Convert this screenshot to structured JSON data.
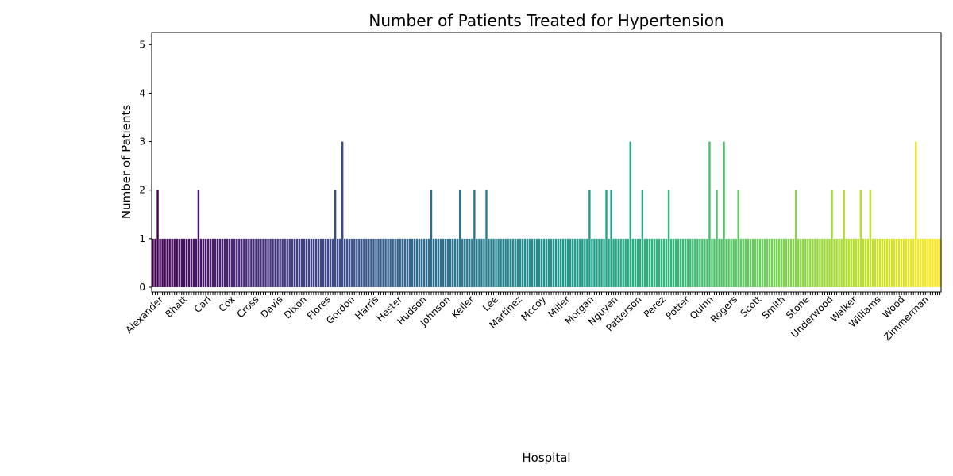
{
  "chart_data": {
    "type": "bar",
    "title": "Number of Patients Treated for Hypertension",
    "xlabel": "Hospital",
    "ylabel": "Number of Patients",
    "ylim": [
      0,
      5.25
    ],
    "yticks": [
      0,
      1,
      2,
      3,
      4,
      5
    ],
    "grid": false,
    "legend": "none",
    "palette": "viridis",
    "categories_visible": [
      "Alexander",
      "Bhatt",
      "Carl",
      "Cox",
      "Cross",
      "Davis",
      "Dixon",
      "Flores",
      "Gordon",
      "Harris",
      "Hester",
      "Hudson",
      "Johnson",
      "Keller",
      "Lee",
      "Martinez",
      "Mccoy",
      "Miller",
      "Morgan",
      "Nguyen",
      "Patterson",
      "Perez",
      "Potter",
      "Quinn",
      "Rogers",
      "Scott",
      "Smith",
      "Stone",
      "Underwood",
      "Walker",
      "Williams",
      "Wood",
      "Zimmerman"
    ],
    "n_bars": 330,
    "values": [
      1,
      1,
      2,
      1,
      1,
      1,
      1,
      1,
      1,
      1,
      1,
      1,
      1,
      1,
      1,
      1,
      1,
      1,
      1,
      2,
      1,
      1,
      1,
      1,
      1,
      1,
      1,
      1,
      1,
      1,
      1,
      1,
      1,
      1,
      1,
      1,
      1,
      1,
      1,
      1,
      1,
      1,
      1,
      1,
      1,
      1,
      1,
      1,
      1,
      1,
      1,
      1,
      1,
      1,
      1,
      1,
      1,
      1,
      1,
      1,
      1,
      1,
      1,
      1,
      1,
      1,
      1,
      1,
      1,
      1,
      1,
      1,
      1,
      1,
      1,
      1,
      2,
      1,
      1,
      3,
      1,
      1,
      1,
      1,
      1,
      1,
      1,
      1,
      1,
      1,
      1,
      1,
      1,
      1,
      1,
      1,
      1,
      1,
      1,
      1,
      1,
      1,
      1,
      1,
      1,
      1,
      1,
      1,
      1,
      1,
      1,
      1,
      1,
      1,
      1,
      1,
      2,
      1,
      1,
      1,
      1,
      1,
      1,
      1,
      1,
      1,
      1,
      1,
      2,
      1,
      1,
      1,
      1,
      1,
      2,
      1,
      1,
      1,
      1,
      2,
      1,
      1,
      1,
      1,
      1,
      1,
      1,
      1,
      1,
      1,
      1,
      1,
      1,
      1,
      1,
      1,
      1,
      1,
      1,
      1,
      1,
      1,
      1,
      1,
      1,
      1,
      1,
      1,
      1,
      1,
      1,
      1,
      1,
      1,
      1,
      1,
      1,
      1,
      1,
      1,
      1,
      1,
      2,
      1,
      1,
      1,
      1,
      1,
      1,
      2,
      1,
      2,
      1,
      1,
      1,
      1,
      1,
      1,
      1,
      3,
      1,
      1,
      1,
      1,
      2,
      1,
      1,
      1,
      1,
      1,
      1,
      1,
      1,
      1,
      1,
      2,
      1,
      1,
      1,
      1,
      1,
      1,
      1,
      1,
      1,
      1,
      1,
      1,
      1,
      1,
      1,
      1,
      3,
      1,
      1,
      2,
      1,
      1,
      3,
      1,
      1,
      1,
      1,
      1,
      2,
      1,
      1,
      1,
      1,
      1,
      1,
      1,
      1,
      1,
      1,
      1,
      1,
      1,
      1,
      1,
      1,
      1,
      1,
      1,
      1,
      1,
      1,
      1,
      2,
      1,
      1,
      1,
      1,
      1,
      1,
      1,
      1,
      1,
      1,
      1,
      1,
      1,
      1,
      2,
      1,
      1,
      1,
      1,
      2,
      1,
      1,
      1,
      1,
      1,
      1,
      2,
      1,
      1,
      1,
      2,
      1,
      1,
      1,
      1,
      1,
      1,
      1,
      1,
      1,
      1,
      1,
      1,
      1,
      1,
      1,
      1,
      1,
      1,
      3,
      1,
      1,
      1,
      1,
      1,
      1,
      1,
      1,
      1,
      1
    ]
  }
}
